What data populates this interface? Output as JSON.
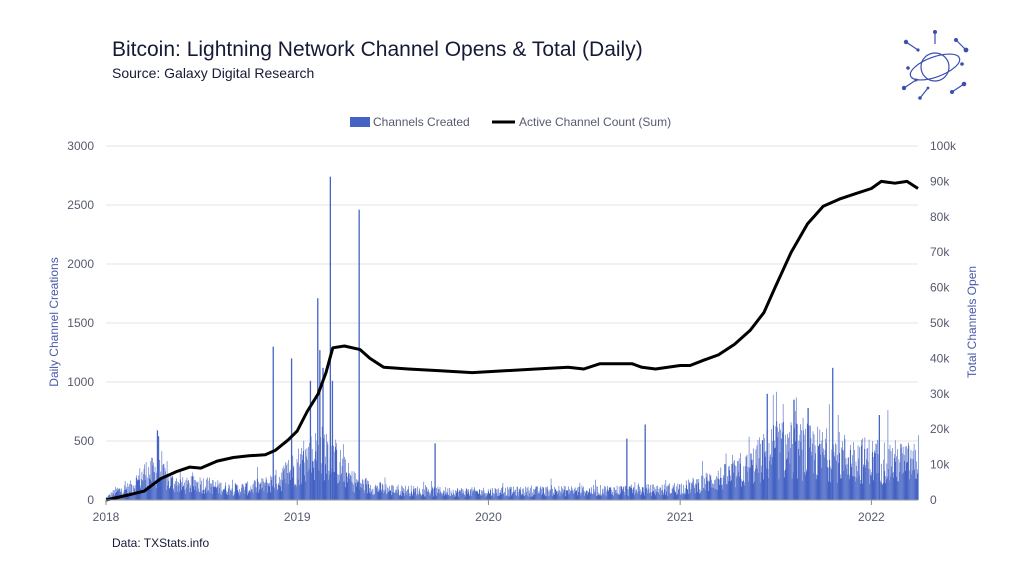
{
  "header": {
    "title": "Bitcoin: Lightning Network Channel Opens & Total (Daily)",
    "subtitle": "Source: Galaxy Digital Research"
  },
  "footer": {
    "data_source": "Data: TXStats.info"
  },
  "logo": {
    "icon": "galaxy-orbit-logo-icon",
    "color": "#3a4fb0"
  },
  "colors": {
    "bars": "#4563c4",
    "line": "#000000",
    "grid": "#e3e3e8",
    "axis_label": "#4a5aa8"
  },
  "chart_data": {
    "type": "bar",
    "title": "Bitcoin: Lightning Network Channel Opens & Total (Daily)",
    "subtitle": "Source: Galaxy Digital Research",
    "legend": {
      "placement": "top-center",
      "entries": [
        "Channels Created",
        "Active Channel Count (Sum)"
      ]
    },
    "grid": true,
    "x_axis": {
      "type": "date",
      "range": [
        "2018-01-01",
        "2022-03-31"
      ],
      "ticks": [
        "2018",
        "2019",
        "2020",
        "2021",
        "2022"
      ]
    },
    "y_left": {
      "label": "Daily Channel Creations",
      "range": [
        0,
        3000
      ],
      "ticks": [
        "0",
        "500",
        "1000",
        "1500",
        "2000",
        "2500",
        "3000"
      ]
    },
    "y_right": {
      "label": "Total Channels Open",
      "range": [
        0,
        100000
      ],
      "ticks": [
        "0",
        "10k",
        "20k",
        "30k",
        "40k",
        "50k",
        "60k",
        "70k",
        "80k",
        "90k",
        "100k"
      ]
    },
    "series": [
      {
        "name": "Channels Created",
        "type": "bar",
        "axis": "left",
        "baseline_profile": [
          [
            "2018-01-01",
            20
          ],
          [
            "2018-01-20",
            80
          ],
          [
            "2018-02-15",
            110
          ],
          [
            "2018-03-15",
            240
          ],
          [
            "2018-04-10",
            260
          ],
          [
            "2018-05-01",
            170
          ],
          [
            "2018-06-01",
            130
          ],
          [
            "2018-07-01",
            150
          ],
          [
            "2018-08-01",
            120
          ],
          [
            "2018-09-01",
            100
          ],
          [
            "2018-10-01",
            110
          ],
          [
            "2018-11-01",
            140
          ],
          [
            "2018-12-01",
            200
          ],
          [
            "2019-01-01",
            320
          ],
          [
            "2019-02-01",
            420
          ],
          [
            "2019-03-01",
            460
          ],
          [
            "2019-03-20",
            330
          ],
          [
            "2019-04-15",
            180
          ],
          [
            "2019-05-15",
            120
          ],
          [
            "2019-07-01",
            95
          ],
          [
            "2019-09-01",
            80
          ],
          [
            "2019-12-01",
            75
          ],
          [
            "2020-03-01",
            80
          ],
          [
            "2020-06-01",
            85
          ],
          [
            "2020-09-01",
            90
          ],
          [
            "2020-12-01",
            95
          ],
          [
            "2021-01-15",
            120
          ],
          [
            "2021-03-01",
            180
          ],
          [
            "2021-05-01",
            260
          ],
          [
            "2021-07-01",
            480
          ],
          [
            "2021-08-15",
            460
          ],
          [
            "2021-10-01",
            430
          ],
          [
            "2021-12-01",
            380
          ],
          [
            "2022-02-01",
            360
          ],
          [
            "2022-03-31",
            340
          ]
        ],
        "spikes": [
          [
            "2018-04-08",
            590
          ],
          [
            "2018-04-10",
            540
          ],
          [
            "2018-11-15",
            1300
          ],
          [
            "2018-12-20",
            1200
          ],
          [
            "2019-01-25",
            1010
          ],
          [
            "2019-02-08",
            1710
          ],
          [
            "2019-02-12",
            1270
          ],
          [
            "2019-02-18",
            1120
          ],
          [
            "2019-03-04",
            2740
          ],
          [
            "2019-03-08",
            1010
          ],
          [
            "2019-04-28",
            2460
          ],
          [
            "2019-09-20",
            480
          ],
          [
            "2020-09-20",
            520
          ],
          [
            "2020-10-25",
            640
          ],
          [
            "2021-06-15",
            900
          ],
          [
            "2021-08-05",
            850
          ],
          [
            "2021-10-18",
            1120
          ],
          [
            "2021-09-01",
            780
          ],
          [
            "2022-01-15",
            720
          ]
        ]
      },
      {
        "name": "Active Channel Count (Sum)",
        "type": "line",
        "axis": "right",
        "points": [
          [
            "2018-01-01",
            0
          ],
          [
            "2018-02-15",
            1500
          ],
          [
            "2018-03-15",
            2500
          ],
          [
            "2018-04-15",
            6000
          ],
          [
            "2018-05-15",
            8000
          ],
          [
            "2018-06-10",
            9300
          ],
          [
            "2018-07-01",
            9000
          ],
          [
            "2018-08-01",
            11000
          ],
          [
            "2018-09-01",
            12000
          ],
          [
            "2018-10-01",
            12500
          ],
          [
            "2018-11-01",
            12800
          ],
          [
            "2018-11-20",
            14000
          ],
          [
            "2018-12-15",
            17000
          ],
          [
            "2019-01-01",
            19500
          ],
          [
            "2019-01-20",
            25000
          ],
          [
            "2019-02-10",
            30000
          ],
          [
            "2019-02-25",
            36000
          ],
          [
            "2019-03-10",
            43000
          ],
          [
            "2019-04-01",
            43500
          ],
          [
            "2019-05-01",
            42500
          ],
          [
            "2019-05-20",
            40000
          ],
          [
            "2019-06-15",
            37500
          ],
          [
            "2019-08-01",
            37000
          ],
          [
            "2019-10-01",
            36500
          ],
          [
            "2019-12-01",
            36000
          ],
          [
            "2020-02-01",
            36500
          ],
          [
            "2020-04-01",
            37000
          ],
          [
            "2020-06-01",
            37500
          ],
          [
            "2020-07-01",
            37000
          ],
          [
            "2020-08-01",
            38500
          ],
          [
            "2020-10-01",
            38500
          ],
          [
            "2020-10-20",
            37500
          ],
          [
            "2020-11-15",
            37000
          ],
          [
            "2021-01-01",
            38000
          ],
          [
            "2021-01-20",
            38000
          ],
          [
            "2021-02-15",
            39500
          ],
          [
            "2021-03-15",
            41000
          ],
          [
            "2021-04-15",
            44000
          ],
          [
            "2021-05-15",
            48000
          ],
          [
            "2021-06-10",
            53000
          ],
          [
            "2021-07-01",
            60000
          ],
          [
            "2021-08-01",
            70000
          ],
          [
            "2021-09-01",
            78000
          ],
          [
            "2021-10-01",
            83000
          ],
          [
            "2021-11-01",
            85000
          ],
          [
            "2021-12-01",
            86500
          ],
          [
            "2022-01-01",
            88000
          ],
          [
            "2022-01-20",
            90000
          ],
          [
            "2022-02-15",
            89500
          ],
          [
            "2022-03-10",
            90000
          ],
          [
            "2022-03-31",
            88000
          ]
        ]
      }
    ]
  }
}
